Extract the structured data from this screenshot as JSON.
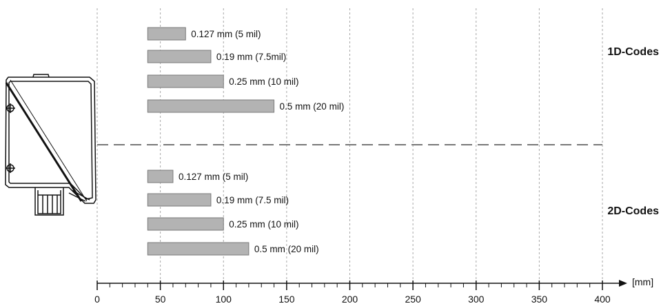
{
  "chart_data": {
    "type": "bar",
    "orientation": "horizontal",
    "axis": {
      "unit": "[mm]",
      "xlim": [
        0,
        400
      ],
      "ticks": [
        0,
        50,
        100,
        150,
        200,
        250,
        300,
        350,
        400
      ],
      "minor_step": 10
    },
    "grid": true,
    "colors": {
      "bar_fill": "#b3b3b3",
      "bar_stroke": "#7a7a7a",
      "grid": "#a6a6a6",
      "axis": "#111111",
      "divider": "#777777",
      "device_stroke": "#111111"
    },
    "groups": [
      {
        "name": "1D-Codes",
        "bars": [
          {
            "label": "0.127 mm (5 mil)",
            "range": [
              40,
              70
            ]
          },
          {
            "label": "0.19 mm (7.5mil)",
            "range": [
              40,
              90
            ]
          },
          {
            "label": "0.25 mm (10 mil)",
            "range": [
              40,
              100
            ]
          },
          {
            "label": "0.5 mm (20 mil)",
            "range": [
              40,
              140
            ]
          }
        ]
      },
      {
        "name": "2D-Codes",
        "bars": [
          {
            "label": "0.127 mm (5 mil)",
            "range": [
              40,
              60
            ]
          },
          {
            "label": "0.19 mm (7.5 mil)",
            "range": [
              40,
              90
            ]
          },
          {
            "label": "0.25 mm (10 mil)",
            "range": [
              40,
              100
            ]
          },
          {
            "label": "0.5 mm (20 mil)",
            "range": [
              40,
              120
            ]
          }
        ]
      }
    ]
  }
}
